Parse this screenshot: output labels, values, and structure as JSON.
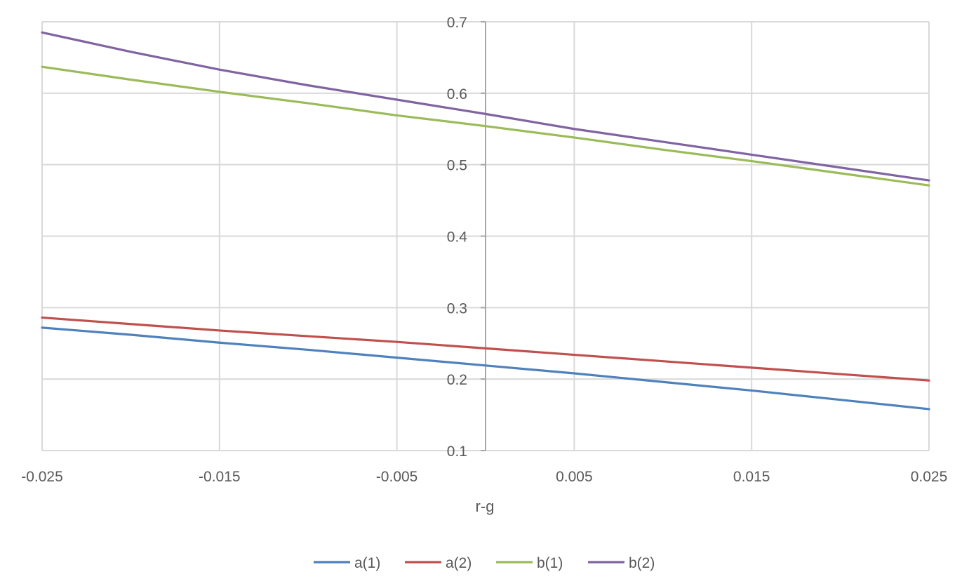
{
  "chart_data": {
    "type": "line",
    "title": "",
    "xlabel": "r-g",
    "ylabel": "",
    "xlim": [
      -0.025,
      0.025
    ],
    "ylim": [
      0.1,
      0.7
    ],
    "x_ticks": [
      "-0.025",
      "-0.015",
      "-0.005",
      "0.005",
      "0.015",
      "0.025"
    ],
    "x_tick_values": [
      -0.025,
      -0.015,
      -0.005,
      0.005,
      0.015,
      0.025
    ],
    "y_ticks": [
      "0.1",
      "0.2",
      "0.3",
      "0.4",
      "0.5",
      "0.6",
      "0.7"
    ],
    "y_tick_values": [
      0.1,
      0.2,
      0.3,
      0.4,
      0.5,
      0.6,
      0.7
    ],
    "grid": true,
    "legend_position": "bottom",
    "x": [
      -0.025,
      -0.02,
      -0.015,
      -0.01,
      -0.005,
      0.0,
      0.005,
      0.01,
      0.015,
      0.02,
      0.025
    ],
    "series": [
      {
        "name": "a(1)",
        "color": "#4F81BD",
        "values": [
          0.272,
          0.262,
          0.251,
          0.241,
          0.23,
          0.219,
          0.208,
          0.196,
          0.184,
          0.171,
          0.158
        ]
      },
      {
        "name": "a(2)",
        "color": "#C0504D",
        "values": [
          0.286,
          0.277,
          0.268,
          0.26,
          0.252,
          0.243,
          0.234,
          0.225,
          0.216,
          0.207,
          0.198
        ]
      },
      {
        "name": "b(1)",
        "color": "#9BBB59",
        "values": [
          0.637,
          0.619,
          0.602,
          0.586,
          0.569,
          0.554,
          0.538,
          0.521,
          0.505,
          0.488,
          0.471
        ]
      },
      {
        "name": "b(2)",
        "color": "#8064A2",
        "values": [
          0.685,
          0.658,
          0.633,
          0.611,
          0.591,
          0.571,
          0.55,
          0.532,
          0.514,
          0.496,
          0.478
        ]
      }
    ]
  }
}
